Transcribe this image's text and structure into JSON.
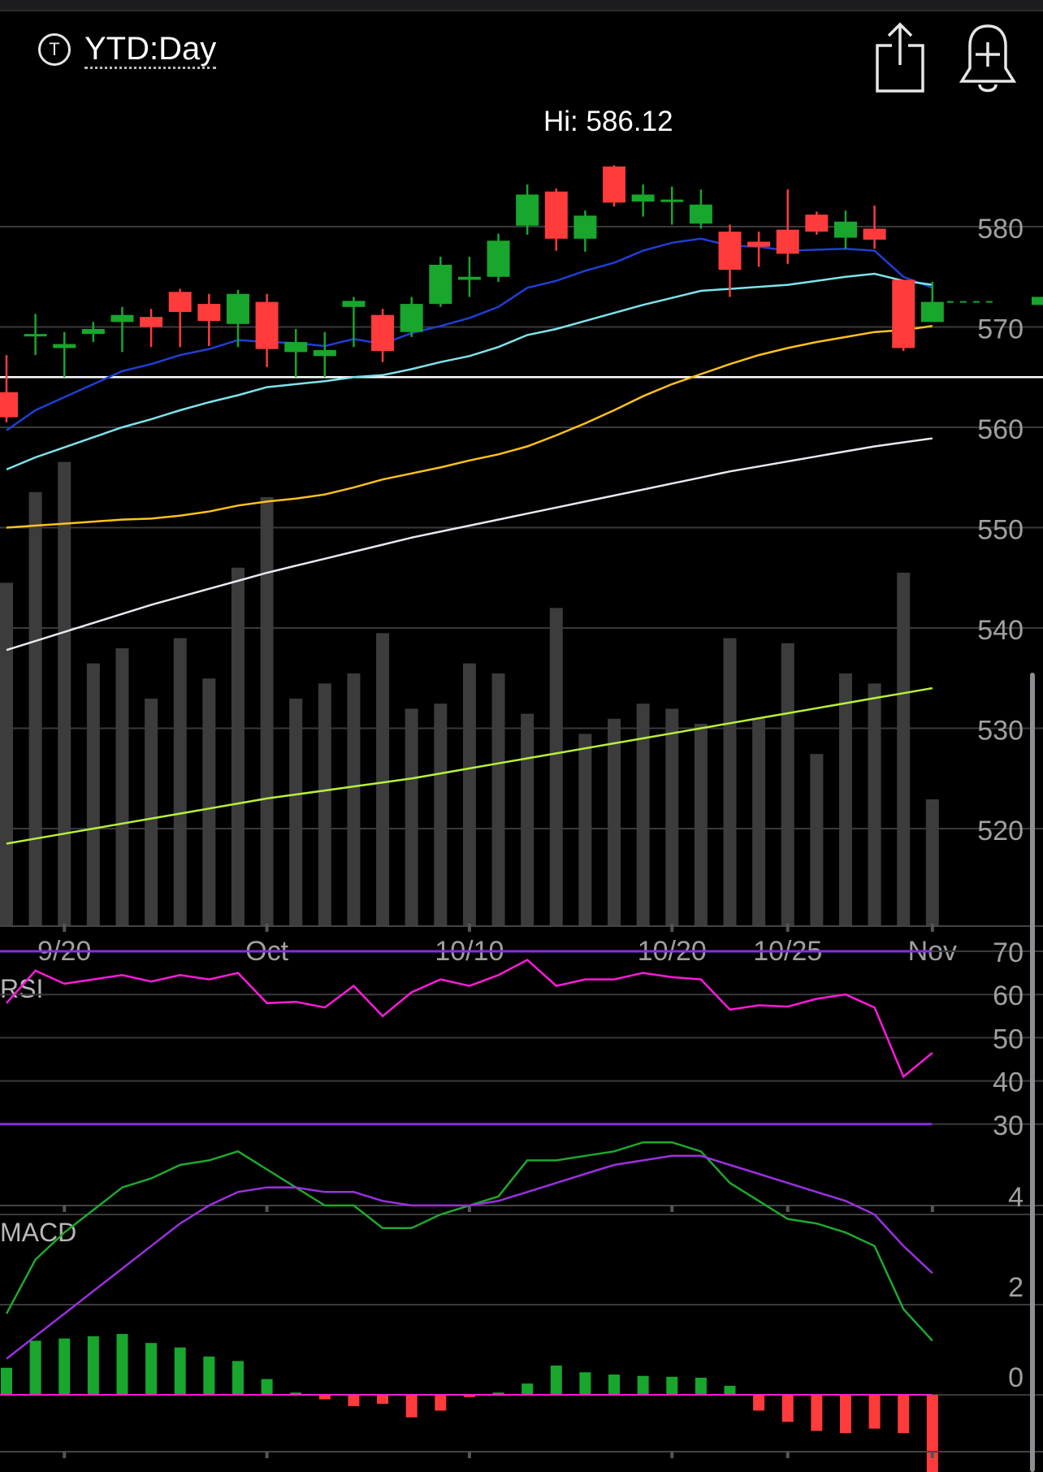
{
  "header": {
    "symbol_icon": "T",
    "period_label": "YTD:Day",
    "share_icon": "share-icon",
    "alert_icon": "bell-plus-icon"
  },
  "hi_label": "Hi: 586.12",
  "chart_data": [
    {
      "type": "candlestick",
      "panel": "price",
      "y_ticks": [
        580,
        570,
        560,
        550,
        540,
        530,
        520
      ],
      "ylim": [
        512,
        589
      ],
      "x_ticks": [
        {
          "label": "9/20",
          "index": 2
        },
        {
          "label": "Oct",
          "index": 9
        },
        {
          "label": "10/10",
          "index": 16
        },
        {
          "label": "10/20",
          "index": 23
        },
        {
          "label": "10/25",
          "index": 27
        },
        {
          "label": "Nov",
          "index": 32
        }
      ],
      "horizontal_line": 565.0,
      "candles": [
        {
          "o": 563.5,
          "c": 561.0,
          "h": 567.2,
          "l": 560.5
        },
        {
          "o": 569.3,
          "c": 569.3,
          "h": 571.3,
          "l": 567.2
        },
        {
          "o": 567.9,
          "c": 568.3,
          "h": 569.5,
          "l": 565.0
        },
        {
          "o": 569.3,
          "c": 569.8,
          "h": 570.5,
          "l": 568.5
        },
        {
          "o": 570.5,
          "c": 571.2,
          "h": 572.0,
          "l": 567.5
        },
        {
          "o": 571.0,
          "c": 570.0,
          "h": 571.8,
          "l": 568.0
        },
        {
          "o": 573.5,
          "c": 571.5,
          "h": 573.8,
          "l": 568.0
        },
        {
          "o": 572.3,
          "c": 570.6,
          "h": 573.3,
          "l": 568.1
        },
        {
          "o": 570.3,
          "c": 573.3,
          "h": 573.7,
          "l": 568.0
        },
        {
          "o": 572.5,
          "c": 567.8,
          "h": 573.3,
          "l": 566.0
        },
        {
          "o": 567.5,
          "c": 568.5,
          "h": 569.8,
          "l": 565.0
        },
        {
          "o": 567.1,
          "c": 567.7,
          "h": 569.5,
          "l": 565.0
        },
        {
          "o": 572.0,
          "c": 572.6,
          "h": 573.0,
          "l": 568.0
        },
        {
          "o": 571.2,
          "c": 567.6,
          "h": 571.8,
          "l": 566.5
        },
        {
          "o": 569.5,
          "c": 572.3,
          "h": 573.0,
          "l": 569.0
        },
        {
          "o": 572.3,
          "c": 576.2,
          "h": 577.0,
          "l": 572.0
        },
        {
          "o": 574.7,
          "c": 575.0,
          "h": 577.0,
          "l": 573.0
        },
        {
          "o": 575.0,
          "c": 578.6,
          "h": 579.3,
          "l": 574.5
        },
        {
          "o": 580.1,
          "c": 583.2,
          "h": 584.2,
          "l": 579.2
        },
        {
          "o": 583.5,
          "c": 578.8,
          "h": 583.8,
          "l": 577.6
        },
        {
          "o": 578.8,
          "c": 581.1,
          "h": 581.6,
          "l": 577.5
        },
        {
          "o": 586.0,
          "c": 582.4,
          "h": 586.12,
          "l": 582.0
        },
        {
          "o": 582.5,
          "c": 583.2,
          "h": 584.2,
          "l": 581.0
        },
        {
          "o": 582.7,
          "c": 582.7,
          "h": 584.0,
          "l": 580.2
        },
        {
          "o": 580.3,
          "c": 582.2,
          "h": 583.7,
          "l": 579.8
        },
        {
          "o": 579.5,
          "c": 575.7,
          "h": 580.2,
          "l": 573.0
        },
        {
          "o": 578.5,
          "c": 578.0,
          "h": 579.5,
          "l": 576.0
        },
        {
          "o": 579.7,
          "c": 577.3,
          "h": 583.7,
          "l": 576.3
        },
        {
          "o": 581.2,
          "c": 579.5,
          "h": 581.5,
          "l": 579.2
        },
        {
          "o": 578.9,
          "c": 580.5,
          "h": 581.6,
          "l": 577.8
        },
        {
          "o": 579.8,
          "c": 578.7,
          "h": 582.1,
          "l": 577.8
        },
        {
          "o": 574.7,
          "c": 567.9,
          "h": 574.7,
          "l": 567.6
        },
        {
          "o": 570.5,
          "c": 572.5,
          "h": 574.5,
          "l": 570.5
        }
      ],
      "extra_tail_candle": {
        "o": 572.2,
        "c": 573.0,
        "h": 573.5,
        "l": 572.0
      },
      "moving_averages": [
        {
          "color": "#1f3fd6",
          "values": [
            559.7,
            561.7,
            563.0,
            564.3,
            565.6,
            566.3,
            567.2,
            567.8,
            568.7,
            568.5,
            568.4,
            568.1,
            568.8,
            568.3,
            569.4,
            570.1,
            570.9,
            572.0,
            573.9,
            574.6,
            575.6,
            576.4,
            577.6,
            578.4,
            578.8,
            578.1,
            578.0,
            577.6,
            577.7,
            577.8,
            577.6,
            575.0,
            573.9
          ]
        },
        {
          "color": "#7fe3ec",
          "values": [
            555.8,
            557.0,
            558.0,
            559.0,
            560.0,
            560.8,
            561.7,
            562.5,
            563.2,
            564.0,
            564.3,
            564.6,
            565.0,
            565.2,
            565.8,
            566.5,
            567.1,
            568.0,
            569.2,
            569.8,
            570.6,
            571.4,
            572.2,
            572.9,
            573.6,
            573.8,
            574.0,
            574.2,
            574.6,
            575.0,
            575.3,
            574.6,
            574.2
          ]
        },
        {
          "color": "#ffc21a",
          "values": [
            550.0,
            550.2,
            550.4,
            550.6,
            550.8,
            550.9,
            551.2,
            551.6,
            552.2,
            552.6,
            552.9,
            553.3,
            554.0,
            554.8,
            555.4,
            556.0,
            556.7,
            557.3,
            558.1,
            559.2,
            560.4,
            561.7,
            563.1,
            564.3,
            565.3,
            566.3,
            567.2,
            567.9,
            568.5,
            569.0,
            569.5,
            569.7,
            570.1
          ]
        },
        {
          "color": "#e8e8f0",
          "values": [
            537.8,
            538.7,
            539.6,
            540.5,
            541.4,
            542.3,
            543.1,
            543.9,
            544.7,
            545.5,
            546.2,
            546.9,
            547.6,
            548.3,
            549.0,
            549.6,
            550.2,
            550.8,
            551.4,
            552.0,
            552.6,
            553.2,
            553.8,
            554.4,
            555.0,
            555.6,
            556.1,
            556.6,
            557.1,
            557.6,
            558.1,
            558.5,
            558.9
          ]
        },
        {
          "color": "#b8f03a",
          "values": [
            518.5,
            519.0,
            519.5,
            520.0,
            520.5,
            521.0,
            521.5,
            522.0,
            522.5,
            523.0,
            523.4,
            523.8,
            524.2,
            524.6,
            525.0,
            525.5,
            526.0,
            526.5,
            527.0,
            527.5,
            528.0,
            528.5,
            529.0,
            529.5,
            530.0,
            530.5,
            531.0,
            531.5,
            532.0,
            532.5,
            533.0,
            533.5,
            534.0
          ]
        }
      ],
      "volume": [
        0.68,
        0.86,
        0.92,
        0.52,
        0.55,
        0.45,
        0.57,
        0.49,
        0.71,
        0.85,
        0.45,
        0.48,
        0.5,
        0.58,
        0.43,
        0.44,
        0.52,
        0.5,
        0.42,
        0.63,
        0.38,
        0.41,
        0.44,
        0.43,
        0.4,
        0.57,
        0.41,
        0.56,
        0.34,
        0.5,
        0.48,
        0.7,
        0.25
      ]
    },
    {
      "type": "line",
      "panel": "rsi",
      "title": "RSI",
      "y_ticks": [
        70,
        60,
        50,
        40,
        30
      ],
      "levels": [
        70,
        30
      ],
      "values": [
        58.0,
        65.5,
        62.5,
        63.5,
        64.5,
        63.0,
        64.5,
        63.5,
        65.0,
        58.0,
        58.3,
        57.0,
        62.0,
        55.0,
        60.5,
        63.5,
        62.0,
        64.5,
        68.0,
        62.0,
        63.5,
        63.5,
        65.0,
        64.0,
        63.5,
        56.5,
        57.5,
        57.2,
        59.0,
        60.0,
        57.0,
        41.0,
        46.5
      ]
    },
    {
      "type": "line+bar",
      "panel": "macd",
      "title": "MACD",
      "y_ticks": [
        4,
        2,
        0
      ],
      "macd": [
        1.8,
        3.0,
        3.6,
        4.1,
        4.6,
        4.8,
        5.1,
        5.2,
        5.4,
        5.0,
        4.6,
        4.2,
        4.2,
        3.7,
        3.7,
        4.0,
        4.2,
        4.4,
        5.2,
        5.2,
        5.3,
        5.4,
        5.6,
        5.6,
        5.4,
        4.7,
        4.3,
        3.9,
        3.8,
        3.6,
        3.3,
        1.9,
        1.2
      ],
      "signal": [
        0.8,
        1.3,
        1.8,
        2.3,
        2.8,
        3.3,
        3.8,
        4.2,
        4.5,
        4.6,
        4.6,
        4.5,
        4.5,
        4.3,
        4.2,
        4.2,
        4.2,
        4.3,
        4.5,
        4.7,
        4.9,
        5.1,
        5.2,
        5.3,
        5.3,
        5.1,
        4.9,
        4.7,
        4.5,
        4.3,
        4.0,
        3.3,
        2.7
      ],
      "histogram": [
        0.6,
        1.2,
        1.25,
        1.3,
        1.35,
        1.15,
        1.05,
        0.85,
        0.75,
        0.35,
        0.05,
        -0.1,
        -0.25,
        -0.2,
        -0.5,
        -0.35,
        -0.05,
        0.05,
        0.25,
        0.65,
        0.5,
        0.45,
        0.42,
        0.4,
        0.38,
        0.2,
        -0.35,
        -0.6,
        -0.8,
        -0.85,
        -0.75,
        -0.85,
        -1.75,
        -1.8
      ]
    }
  ]
}
